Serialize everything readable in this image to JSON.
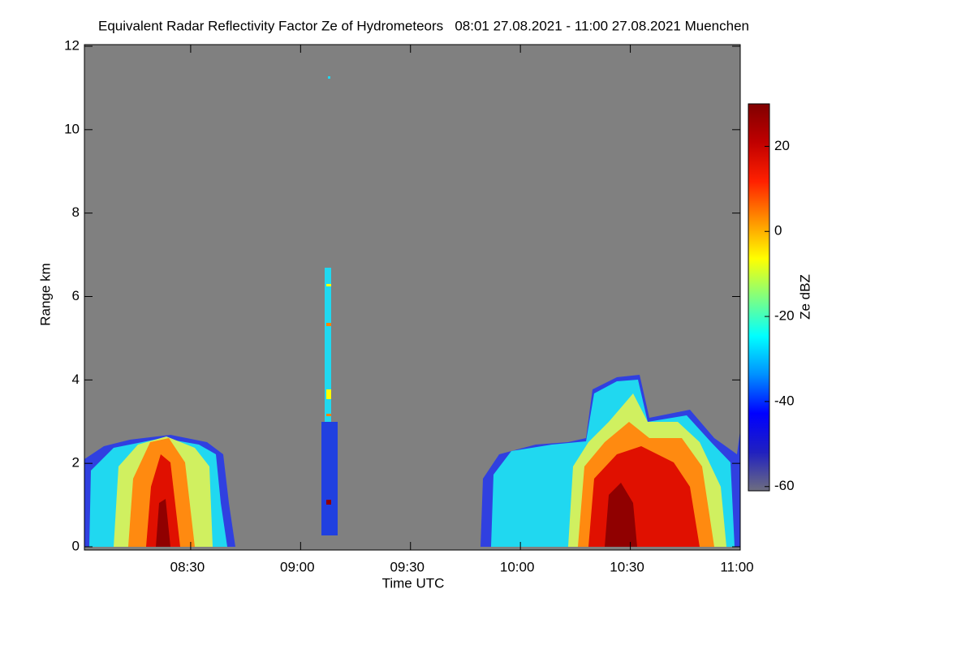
{
  "chart_data": {
    "type": "heatmap",
    "title": "Equivalent Radar Reflectivity Factor Ze of Hydrometeors   08:01 27.08.2021 - 11:00 27.08.2021 Muenchen",
    "xlabel": "Time UTC",
    "ylabel": "Range km",
    "colorbar_label": "Ze dBZ",
    "xlim": [
      481,
      660
    ],
    "xticks": [
      {
        "value": 510,
        "label": "08:30"
      },
      {
        "value": 540,
        "label": "09:00"
      },
      {
        "value": 570,
        "label": "09:30"
      },
      {
        "value": 600,
        "label": "10:00"
      },
      {
        "value": 630,
        "label": "10:30"
      },
      {
        "value": 660,
        "label": "11:00"
      }
    ],
    "ylim": [
      0,
      12
    ],
    "yticks": [
      0,
      2,
      4,
      6,
      8,
      10,
      12
    ],
    "clim": [
      -61,
      30
    ],
    "cticks": [
      -60,
      -40,
      -20,
      0,
      20
    ],
    "colormap": [
      "#6e6e80",
      "#2020c0",
      "#0000ff",
      "#0090ff",
      "#00ffff",
      "#80ff80",
      "#ffff00",
      "#ff9000",
      "#ff2000",
      "#c00000",
      "#800000"
    ],
    "background": "#808080"
  }
}
